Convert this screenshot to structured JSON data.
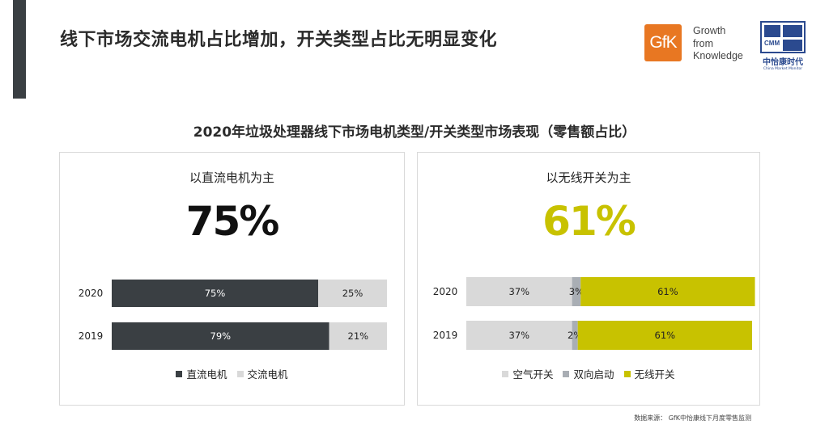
{
  "slide_title": "线下市场交流电机占比增加，开关类型占比无明显变化",
  "logos": {
    "gfk_text": "GfK",
    "gfk_slogan": [
      "Growth",
      "from",
      "Knowledge"
    ],
    "cmm_abbr": "CMM",
    "cmm_cn": "中怡康时代",
    "cmm_en": "China Market Monitor"
  },
  "chart_heading": "2020年垃圾处理器线下市场电机类型/开关类型市场表现（零售额占比）",
  "source_note": "数据来源： GfK中怡康线下月度零售监测",
  "chart_data": [
    {
      "type": "bar",
      "stacked": true,
      "orientation": "horizontal",
      "percent": true,
      "subtitle": "以直流电机为主",
      "headline_value": "75%",
      "categories": [
        "2020",
        "2019"
      ],
      "series": [
        {
          "name": "直流电机",
          "color": "#3a3f43",
          "label_color": "#ffffff",
          "values": [
            75,
            79
          ]
        },
        {
          "name": "交流电机",
          "color": "#d9d9d9",
          "label_color": "#222222",
          "values": [
            25,
            21
          ]
        }
      ],
      "legend_position": "bottom",
      "xlim": [
        0,
        100
      ]
    },
    {
      "type": "bar",
      "stacked": true,
      "orientation": "horizontal",
      "percent": true,
      "subtitle": "以无线开关为主",
      "headline_value": "61%",
      "categories": [
        "2020",
        "2019"
      ],
      "series": [
        {
          "name": "空气开关",
          "color": "#d9d9d9",
          "label_color": "#222222",
          "values": [
            37,
            37
          ]
        },
        {
          "name": "双向启动",
          "color": "#a9aeb4",
          "label_color": "#222222",
          "values": [
            3,
            2
          ]
        },
        {
          "name": "无线开关",
          "color": "#c8c200",
          "label_color": "#222222",
          "values": [
            61,
            61
          ]
        }
      ],
      "legend_position": "bottom",
      "xlim": [
        0,
        100
      ]
    }
  ]
}
